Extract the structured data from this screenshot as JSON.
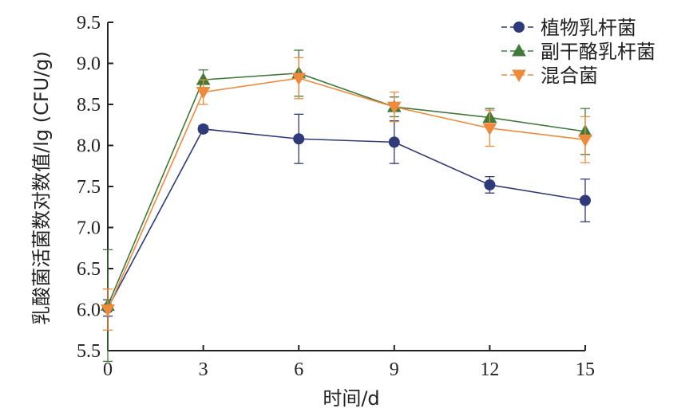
{
  "chart_data": {
    "type": "line",
    "title": "",
    "xlabel": "时间/d",
    "ylabel": "乳酸菌活菌数对数值/lg (CFU/g)",
    "x": [
      0,
      3,
      6,
      9,
      12,
      15
    ],
    "x_ticks": [
      "0",
      "3",
      "6",
      "9",
      "12",
      "15"
    ],
    "y_ticks": [
      "5.5",
      "6.0",
      "6.5",
      "7.0",
      "7.5",
      "8.0",
      "8.5",
      "9.0",
      "9.5"
    ],
    "xlim": [
      0,
      15
    ],
    "ylim": [
      5.5,
      9.5
    ],
    "grid": false,
    "legend_position": "top-right",
    "series": [
      {
        "name": "植物乳杆菌",
        "marker": "circle",
        "color": "#2e3a7a",
        "values": [
          6.02,
          8.2,
          8.08,
          8.04,
          7.52,
          7.33
        ],
        "errors": [
          0.1,
          0.04,
          0.3,
          0.26,
          0.1,
          0.26
        ]
      },
      {
        "name": "副干酪乳杆菌",
        "marker": "triangle-up",
        "color": "#3f7a3a",
        "values": [
          6.05,
          8.8,
          8.88,
          8.47,
          8.34,
          8.17
        ],
        "errors": [
          0.68,
          0.12,
          0.28,
          0.12,
          0.11,
          0.28
        ]
      },
      {
        "name": "混合菌",
        "marker": "triangle-down",
        "color": "#ee8a3c",
        "values": [
          6.0,
          8.65,
          8.82,
          8.47,
          8.21,
          8.07
        ],
        "errors": [
          0.25,
          0.15,
          0.25,
          0.18,
          0.22,
          0.28
        ]
      }
    ]
  }
}
